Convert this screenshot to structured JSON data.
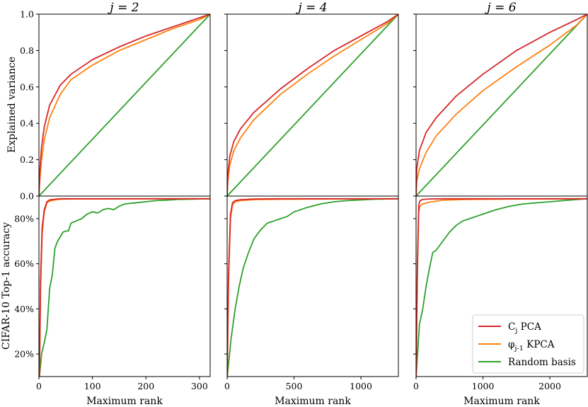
{
  "colors": {
    "pca": "#d62728",
    "kpca": "#ff7f0e",
    "random": "#2ca02c"
  },
  "legend": {
    "position": "lower-right",
    "items": [
      {
        "key": "pca",
        "label": "C_j PCA"
      },
      {
        "key": "kpca",
        "label": "φ_{j-1} KPCA"
      },
      {
        "key": "random",
        "label": "Random basis"
      }
    ]
  },
  "shared": {
    "top_ylabel": "Explained variance",
    "bottom_ylabel": "CIFAR-10 Top-1 accuracy",
    "xlabel": "Maximum rank"
  },
  "chart_data": [
    {
      "type": "line",
      "title": "j = 2",
      "row": "top",
      "col": 0,
      "xlim": [
        0,
        320
      ],
      "ylim": [
        0,
        1
      ],
      "yticks": [
        0,
        0.2,
        0.4,
        0.6,
        0.8,
        1.0
      ],
      "yticklabels": [
        "0.0",
        "0.2",
        "0.4",
        "0.6",
        "0.8",
        "1.0"
      ],
      "series": [
        {
          "key": "pca",
          "x": [
            0,
            2,
            5,
            10,
            20,
            40,
            60,
            100,
            150,
            200,
            250,
            300,
            320
          ],
          "y": [
            0,
            0.15,
            0.27,
            0.38,
            0.5,
            0.61,
            0.67,
            0.75,
            0.82,
            0.88,
            0.93,
            0.98,
            1.0
          ]
        },
        {
          "key": "kpca",
          "x": [
            0,
            2,
            5,
            10,
            20,
            40,
            60,
            100,
            150,
            200,
            250,
            300,
            320
          ],
          "y": [
            0,
            0.1,
            0.2,
            0.31,
            0.43,
            0.56,
            0.64,
            0.72,
            0.8,
            0.86,
            0.92,
            0.97,
            1.0
          ]
        },
        {
          "key": "random",
          "x": [
            0,
            320
          ],
          "y": [
            0,
            1
          ]
        }
      ]
    },
    {
      "type": "line",
      "title": "j = 4",
      "row": "top",
      "col": 1,
      "xlim": [
        0,
        1280
      ],
      "ylim": [
        0,
        1
      ],
      "yticks": [
        0,
        0.2,
        0.4,
        0.6,
        0.8,
        1.0
      ],
      "yticklabels": [],
      "series": [
        {
          "key": "pca",
          "x": [
            0,
            5,
            20,
            50,
            100,
            200,
            400,
            600,
            800,
            1000,
            1200,
            1280
          ],
          "y": [
            0,
            0.12,
            0.22,
            0.3,
            0.37,
            0.46,
            0.59,
            0.7,
            0.8,
            0.88,
            0.96,
            1.0
          ]
        },
        {
          "key": "kpca",
          "x": [
            0,
            5,
            20,
            50,
            100,
            200,
            400,
            600,
            800,
            1000,
            1200,
            1280
          ],
          "y": [
            0,
            0.08,
            0.17,
            0.25,
            0.32,
            0.42,
            0.56,
            0.67,
            0.77,
            0.86,
            0.95,
            1.0
          ]
        },
        {
          "key": "random",
          "x": [
            0,
            1280
          ],
          "y": [
            0,
            1
          ]
        }
      ]
    },
    {
      "type": "line",
      "title": "j = 6",
      "row": "top",
      "col": 2,
      "xlim": [
        0,
        2560
      ],
      "ylim": [
        0,
        1
      ],
      "yticks": [
        0,
        0.2,
        0.4,
        0.6,
        0.8,
        1.0
      ],
      "yticklabels": [],
      "series": [
        {
          "key": "pca",
          "x": [
            0,
            10,
            50,
            150,
            300,
            600,
            1000,
            1500,
            2000,
            2400,
            2560
          ],
          "y": [
            0,
            0.15,
            0.25,
            0.35,
            0.43,
            0.55,
            0.67,
            0.8,
            0.9,
            0.97,
            1.0
          ]
        },
        {
          "key": "kpca",
          "x": [
            0,
            10,
            50,
            150,
            300,
            600,
            1000,
            1500,
            2000,
            2400,
            2560
          ],
          "y": [
            0,
            0.08,
            0.15,
            0.24,
            0.33,
            0.45,
            0.58,
            0.71,
            0.83,
            0.94,
            1.0
          ]
        },
        {
          "key": "random",
          "x": [
            0,
            2560
          ],
          "y": [
            0,
            1
          ]
        }
      ]
    },
    {
      "type": "line",
      "row": "bottom",
      "col": 0,
      "xlim": [
        0,
        320
      ],
      "ylim": [
        10,
        90
      ],
      "yticks": [
        20,
        40,
        60,
        80
      ],
      "yticklabels": [
        "20%",
        "40%",
        "60%",
        "80%"
      ],
      "xticks": [
        0,
        100,
        200,
        300
      ],
      "xticklabels": [
        "0",
        "100",
        "200",
        "300"
      ],
      "xlabel": "Maximum rank",
      "series": [
        {
          "key": "pca",
          "x": [
            1,
            3,
            6,
            10,
            15,
            20,
            30,
            40,
            60,
            100,
            200,
            320
          ],
          "y": [
            10,
            52,
            76,
            84,
            87.5,
            88.3,
            88.6,
            88.8,
            88.8,
            88.8,
            88.8,
            88.8
          ]
        },
        {
          "key": "kpca",
          "x": [
            1,
            3,
            6,
            10,
            15,
            20,
            30,
            40,
            60,
            100,
            200,
            320
          ],
          "y": [
            10,
            48,
            73,
            83,
            87,
            87.8,
            88.3,
            88.6,
            88.7,
            88.7,
            88.8,
            88.8
          ]
        },
        {
          "key": "random",
          "x": [
            1,
            5,
            10,
            15,
            20,
            25,
            30,
            35,
            40,
            45,
            50,
            55,
            60,
            70,
            80,
            90,
            100,
            110,
            120,
            130,
            140,
            150,
            160,
            180,
            200,
            220,
            240,
            260,
            280,
            300,
            320
          ],
          "y": [
            10,
            20,
            25,
            31,
            49,
            55,
            67,
            70,
            72,
            74,
            74.5,
            74.5,
            78,
            79,
            80,
            82,
            83,
            82.5,
            84,
            84.5,
            84,
            85.5,
            86.5,
            87,
            87.5,
            88,
            88.2,
            88.5,
            88.6,
            88.7,
            88.8
          ]
        }
      ]
    },
    {
      "type": "line",
      "row": "bottom",
      "col": 1,
      "xlim": [
        0,
        1280
      ],
      "ylim": [
        10,
        90
      ],
      "yticks": [
        20,
        40,
        60,
        80
      ],
      "yticklabels": [],
      "xticks": [
        0,
        500,
        1000
      ],
      "xticklabels": [
        "0",
        "500",
        "1000"
      ],
      "xlabel": "Maximum rank",
      "series": [
        {
          "key": "pca",
          "x": [
            1,
            10,
            25,
            40,
            60,
            100,
            200,
            400,
            800,
            1280
          ],
          "y": [
            10,
            55,
            82,
            87,
            88,
            88.4,
            88.7,
            88.8,
            88.8,
            88.8
          ]
        },
        {
          "key": "kpca",
          "x": [
            1,
            10,
            25,
            40,
            60,
            100,
            200,
            400,
            800,
            1280
          ],
          "y": [
            10,
            50,
            80,
            86,
            87.5,
            88,
            88.4,
            88.6,
            88.7,
            88.8
          ]
        },
        {
          "key": "random",
          "x": [
            1,
            30,
            60,
            90,
            120,
            160,
            200,
            250,
            300,
            350,
            400,
            450,
            500,
            600,
            700,
            800,
            900,
            1000,
            1100,
            1280
          ],
          "y": [
            10,
            27,
            40,
            50,
            58,
            65,
            71,
            75,
            78,
            79,
            80,
            81,
            83,
            85,
            86.5,
            87.5,
            88,
            88.3,
            88.6,
            88.8
          ]
        }
      ]
    },
    {
      "type": "line",
      "row": "bottom",
      "col": 2,
      "xlim": [
        0,
        2560
      ],
      "ylim": [
        10,
        90
      ],
      "yticks": [
        20,
        40,
        60,
        80
      ],
      "yticklabels": [],
      "xticks": [
        0,
        1000,
        2000
      ],
      "xticklabels": [
        "0",
        "1000",
        "2000"
      ],
      "xlabel": "Maximum rank",
      "series": [
        {
          "key": "pca",
          "x": [
            1,
            20,
            40,
            60,
            100,
            200,
            400,
            800,
            1600,
            2560
          ],
          "y": [
            10,
            60,
            86,
            88,
            88.5,
            88.7,
            88.8,
            88.8,
            88.8,
            88.8
          ]
        },
        {
          "key": "kpca",
          "x": [
            1,
            20,
            40,
            60,
            100,
            200,
            400,
            800,
            1600,
            2560
          ],
          "y": [
            10,
            55,
            83,
            85.5,
            86.5,
            87.3,
            88.2,
            88.5,
            88.7,
            88.8
          ]
        },
        {
          "key": "random",
          "x": [
            1,
            50,
            100,
            150,
            200,
            250,
            300,
            400,
            500,
            600,
            700,
            800,
            900,
            1000,
            1200,
            1400,
            1600,
            1800,
            2000,
            2200,
            2560
          ],
          "y": [
            10,
            33,
            40,
            50,
            58,
            65,
            66,
            70,
            74,
            77,
            79,
            80,
            81,
            82,
            84,
            85.5,
            86.5,
            87,
            87.5,
            88,
            88.8
          ]
        }
      ]
    }
  ]
}
